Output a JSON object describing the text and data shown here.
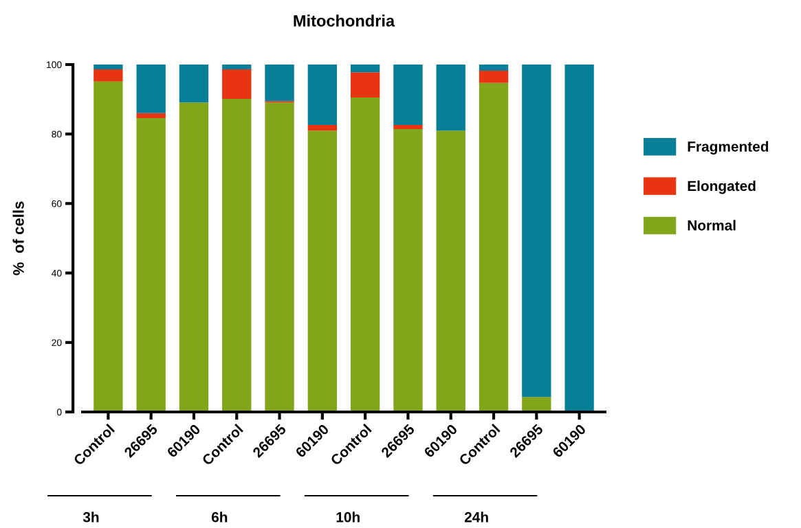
{
  "chart_data": {
    "type": "bar",
    "stacked": true,
    "title": "Mitochondria",
    "ylabel": "%  of cells",
    "categories": [
      "Control",
      "26695",
      "60190",
      "Control",
      "26695",
      "60190",
      "Control",
      "26695",
      "60190",
      "Control",
      "26695",
      "60190"
    ],
    "series": [
      {
        "name": "Normal",
        "color": "#82a61b",
        "values": [
          95.1,
          84.6,
          89.1,
          90.1,
          89.1,
          81.0,
          90.5,
          81.4,
          81.0,
          94.7,
          4.3,
          null
        ]
      },
      {
        "name": "Elongated",
        "color": "#e83511",
        "values": [
          3.5,
          1.4,
          0,
          8.5,
          0.4,
          1.6,
          7.3,
          1.2,
          0,
          3.5,
          0,
          0
        ]
      },
      {
        "name": "Fragmented",
        "color": "#077f98",
        "values": [
          1.4,
          14.0,
          10.9,
          1.4,
          10.5,
          17.4,
          2.2,
          17.4,
          19.0,
          1.8,
          95.7,
          100
        ]
      }
    ],
    "annotations": [
      "3h",
      "6h",
      "10h",
      "24h"
    ],
    "ylim": [
      0,
      100
    ],
    "yticks": [
      0,
      20,
      40,
      60,
      80,
      100
    ],
    "grid": false,
    "legend": "right"
  }
}
